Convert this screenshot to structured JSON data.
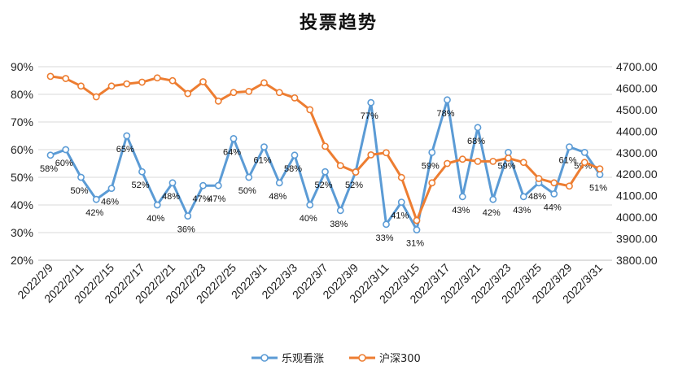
{
  "chart_data": {
    "type": "line",
    "title": "投票趋势",
    "categories": [
      "2022/2/9",
      "2022/2/10",
      "2022/2/11",
      "2022/2/14",
      "2022/2/15",
      "2022/2/16",
      "2022/2/17",
      "2022/2/18",
      "2022/2/21",
      "2022/2/22",
      "2022/2/23",
      "2022/2/24",
      "2022/2/25",
      "2022/2/28",
      "2022/3/1",
      "2022/3/2",
      "2022/3/3",
      "2022/3/4",
      "2022/3/7",
      "2022/3/8",
      "2022/3/9",
      "2022/3/10",
      "2022/3/11",
      "2022/3/14",
      "2022/3/15",
      "2022/3/16",
      "2022/3/17",
      "2022/3/18",
      "2022/3/21",
      "2022/3/22",
      "2022/3/23",
      "2022/3/24",
      "2022/3/25",
      "2022/3/28",
      "2022/3/29",
      "2022/3/30",
      "2022/3/31"
    ],
    "x_tick_labels": [
      "2022/2/9",
      "2022/2/11",
      "2022/2/15",
      "2022/2/17",
      "2022/2/21",
      "2022/2/23",
      "2022/2/25",
      "2022/3/1",
      "2022/3/3",
      "2022/3/7",
      "2022/3/9",
      "2022/3/11",
      "2022/3/15",
      "2022/3/17",
      "2022/3/21",
      "2022/3/23",
      "2022/3/25",
      "2022/3/29",
      "2022/3/31"
    ],
    "y_left": {
      "ylim": [
        20,
        90
      ],
      "ticks": [
        "20%",
        "30%",
        "40%",
        "50%",
        "60%",
        "70%",
        "80%",
        "90%"
      ]
    },
    "y_right": {
      "ylim": [
        3800,
        4700
      ],
      "ticks": [
        "3800.00",
        "3900.00",
        "4000.00",
        "4100.00",
        "4200.00",
        "4300.00",
        "4400.00",
        "4500.00",
        "4600.00",
        "4700.00"
      ]
    },
    "grid": true,
    "legend_position": "bottom",
    "series": [
      {
        "name": "乐观看涨",
        "axis": "left",
        "color": "#5b9bd5",
        "values": [
          58,
          60,
          50,
          42,
          46,
          65,
          52,
          40,
          48,
          36,
          47,
          47,
          64,
          50,
          61,
          48,
          58,
          40,
          52,
          38,
          52,
          77,
          33,
          41,
          31,
          59,
          78,
          43,
          68,
          42,
          59,
          43,
          48,
          44,
          61,
          59,
          51
        ],
        "labels": [
          "58%",
          "60%",
          "50%",
          "42%",
          "46%",
          "65%",
          "52%",
          "40%",
          "48%",
          "36%",
          "47%",
          "47%",
          "64%",
          "50%",
          "61%",
          "48%",
          "58%",
          "40%",
          "52%",
          "38%",
          "52%",
          "77%",
          "33%",
          "41%",
          "31%",
          "59%",
          "78%",
          "43%",
          "68%",
          "42%",
          "59%",
          "43%",
          "48%",
          "44%",
          "61%",
          "59%",
          "51%"
        ]
      },
      {
        "name": "沪深300",
        "axis": "right",
        "color": "#ed7d31",
        "values": [
          4655,
          4645,
          4610,
          4560,
          4610,
          4620,
          4628,
          4648,
          4635,
          4575,
          4630,
          4540,
          4580,
          4585,
          4625,
          4580,
          4555,
          4500,
          4330,
          4240,
          4210,
          4290,
          4300,
          4185,
          3985,
          4160,
          4250,
          4270,
          4260,
          4260,
          4275,
          4255,
          4180,
          4160,
          4145,
          4255,
          4225
        ]
      }
    ]
  }
}
